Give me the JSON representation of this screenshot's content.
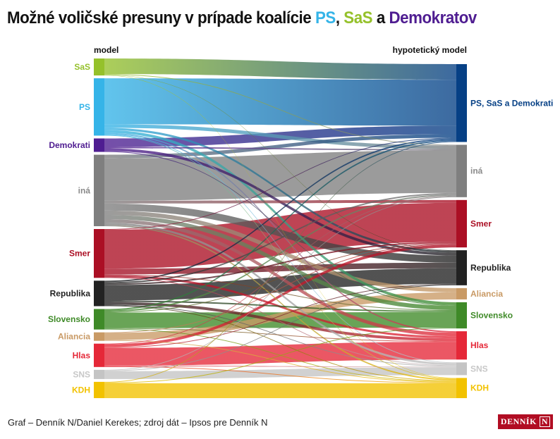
{
  "title": {
    "prefix": "Možné voličské presuny v prípade koalície ",
    "ps": "PS",
    "comma": ", ",
    "sas": "SaS",
    "and": " a ",
    "dem": "Demokratov",
    "colors": {
      "ps": "#35b4e8",
      "sas": "#95c12b",
      "dem": "#4f1d91"
    }
  },
  "footer": "Graf – Denník N/Daniel Kerekes; zdroj dát – Ipsos pre Denník N",
  "logo": "DENNÍK N",
  "chart_data": {
    "type": "sankey",
    "left_header": "model",
    "right_header": "hypotetický model",
    "left_nodes": [
      {
        "id": "SaS",
        "label": "SaS",
        "color": "#95c12b"
      },
      {
        "id": "PS",
        "label": "PS",
        "color": "#35b4e8"
      },
      {
        "id": "Demokrati",
        "label": "Demokrati",
        "color": "#4f1d91"
      },
      {
        "id": "ina",
        "label": "iná",
        "color": "#7f7f7f"
      },
      {
        "id": "Smer",
        "label": "Smer",
        "color": "#ab0f24"
      },
      {
        "id": "Republika",
        "label": "Republika",
        "color": "#222222"
      },
      {
        "id": "Slovensko",
        "label": "Slovensko",
        "color": "#3f8a28"
      },
      {
        "id": "Aliancia",
        "label": "Aliancia",
        "color": "#c99a65"
      },
      {
        "id": "Hlas",
        "label": "Hlas",
        "color": "#e52838"
      },
      {
        "id": "SNS",
        "label": "SNS",
        "color": "#c4c4c4"
      },
      {
        "id": "KDH",
        "label": "KDH",
        "color": "#f2c200"
      }
    ],
    "right_nodes": [
      {
        "id": "PSSD",
        "label": "PS, SaS a Demokrati",
        "color": "#064085"
      },
      {
        "id": "ina",
        "label": "iná",
        "color": "#7f7f7f"
      },
      {
        "id": "Smer",
        "label": "Smer",
        "color": "#ab0f24"
      },
      {
        "id": "Republika",
        "label": "Republika",
        "color": "#222222"
      },
      {
        "id": "Aliancia",
        "label": "Aliancia",
        "color": "#c99a65"
      },
      {
        "id": "Slovensko",
        "label": "Slovensko",
        "color": "#3f8a28"
      },
      {
        "id": "Hlas",
        "label": "Hlas",
        "color": "#e52838"
      },
      {
        "id": "SNS",
        "label": "SNS",
        "color": "#c4c4c4"
      },
      {
        "id": "KDH",
        "label": "KDH",
        "color": "#f2c200"
      }
    ],
    "flows": [
      [
        "SaS",
        "PSSD",
        22
      ],
      [
        "SaS",
        "ina",
        1
      ],
      [
        "SaS",
        "Republika",
        0.5
      ],
      [
        "SaS",
        "KDH",
        0.5
      ],
      [
        "PS",
        "PSSD",
        65
      ],
      [
        "PS",
        "ina",
        5
      ],
      [
        "PS",
        "Republika",
        3
      ],
      [
        "PS",
        "Slovensko",
        4
      ],
      [
        "PS",
        "Hlas",
        2
      ],
      [
        "PS",
        "SNS",
        1
      ],
      [
        "PS",
        "KDH",
        1
      ],
      [
        "Demokrati",
        "PSSD",
        12
      ],
      [
        "Demokrati",
        "ina",
        2
      ],
      [
        "Demokrati",
        "Republika",
        4
      ],
      [
        "Demokrati",
        "Slovensko",
        1
      ],
      [
        "ina",
        "PSSD",
        5
      ],
      [
        "ina",
        "ina",
        60
      ],
      [
        "ina",
        "Smer",
        4
      ],
      [
        "ina",
        "Republika",
        10
      ],
      [
        "ina",
        "Aliancia",
        6
      ],
      [
        "ina",
        "Slovensko",
        6
      ],
      [
        "ina",
        "Hlas",
        5
      ],
      [
        "ina",
        "SNS",
        3
      ],
      [
        "ina",
        "KDH",
        2
      ],
      [
        "Smer",
        "PSSD",
        1
      ],
      [
        "Smer",
        "Smer",
        55
      ],
      [
        "Smer",
        "Republika",
        8
      ],
      [
        "Smer",
        "Slovensko",
        1
      ],
      [
        "Smer",
        "Hlas",
        3
      ],
      [
        "Smer",
        "SNS",
        1
      ],
      [
        "Republika",
        "PSSD",
        2
      ],
      [
        "Republika",
        "ina",
        2
      ],
      [
        "Republika",
        "Smer",
        2
      ],
      [
        "Republika",
        "Republika",
        22
      ],
      [
        "Republika",
        "Slovensko",
        2
      ],
      [
        "Republika",
        "Hlas",
        4
      ],
      [
        "Republika",
        "SNS",
        1
      ],
      [
        "Republika",
        "KDH",
        1
      ],
      [
        "Slovensko",
        "PSSD",
        2
      ],
      [
        "Slovensko",
        "ina",
        2
      ],
      [
        "Slovensko",
        "Smer",
        1
      ],
      [
        "Slovensko",
        "Slovensko",
        22
      ],
      [
        "Slovensko",
        "Hlas",
        1
      ],
      [
        "Slovensko",
        "KDH",
        1
      ],
      [
        "Aliancia",
        "Smer",
        1
      ],
      [
        "Aliancia",
        "Aliancia",
        10
      ],
      [
        "Aliancia",
        "KDH",
        1
      ],
      [
        "Hlas",
        "ina",
        1
      ],
      [
        "Hlas",
        "Smer",
        4
      ],
      [
        "Hlas",
        "Republika",
        1
      ],
      [
        "Hlas",
        "Hlas",
        25
      ],
      [
        "Hlas",
        "SNS",
        1
      ],
      [
        "Hlas",
        "KDH",
        1
      ],
      [
        "SNS",
        "ina",
        1
      ],
      [
        "SNS",
        "Republika",
        1
      ],
      [
        "SNS",
        "SNS",
        11
      ],
      [
        "KDH",
        "PSSD",
        1
      ],
      [
        "KDH",
        "Slovensko",
        1
      ],
      [
        "KDH",
        "KDH",
        21
      ]
    ]
  }
}
